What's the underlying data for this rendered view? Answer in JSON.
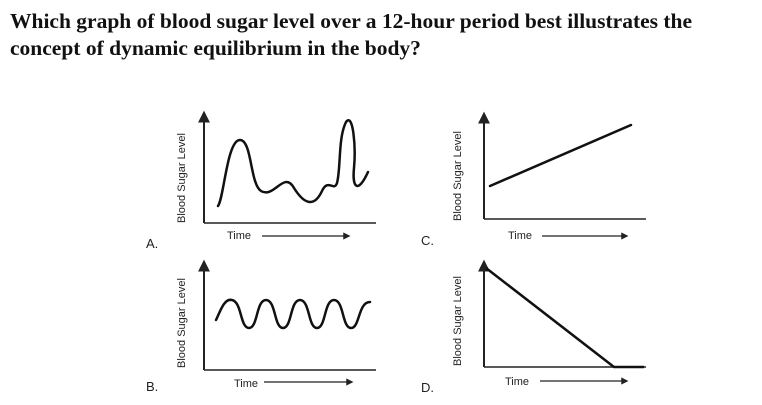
{
  "question": "Which graph of blood sugar level over a 12-hour period best illustrates the concept of dynamic equilibrium in the body?",
  "graphs": [
    {
      "letter": "A.",
      "ylabel": "Blood Sugar Level",
      "xlabel": "Time",
      "pattern": "irregular fluctuations"
    },
    {
      "letter": "B.",
      "ylabel": "Blood Sugar Level",
      "xlabel": "Time",
      "pattern": "regular oscillation"
    },
    {
      "letter": "C.",
      "ylabel": "Blood Sugar Level",
      "xlabel": "Time",
      "pattern": "steady increase"
    },
    {
      "letter": "D.",
      "ylabel": "Blood Sugar Level",
      "xlabel": "Time",
      "pattern": "steady decrease then level"
    }
  ]
}
